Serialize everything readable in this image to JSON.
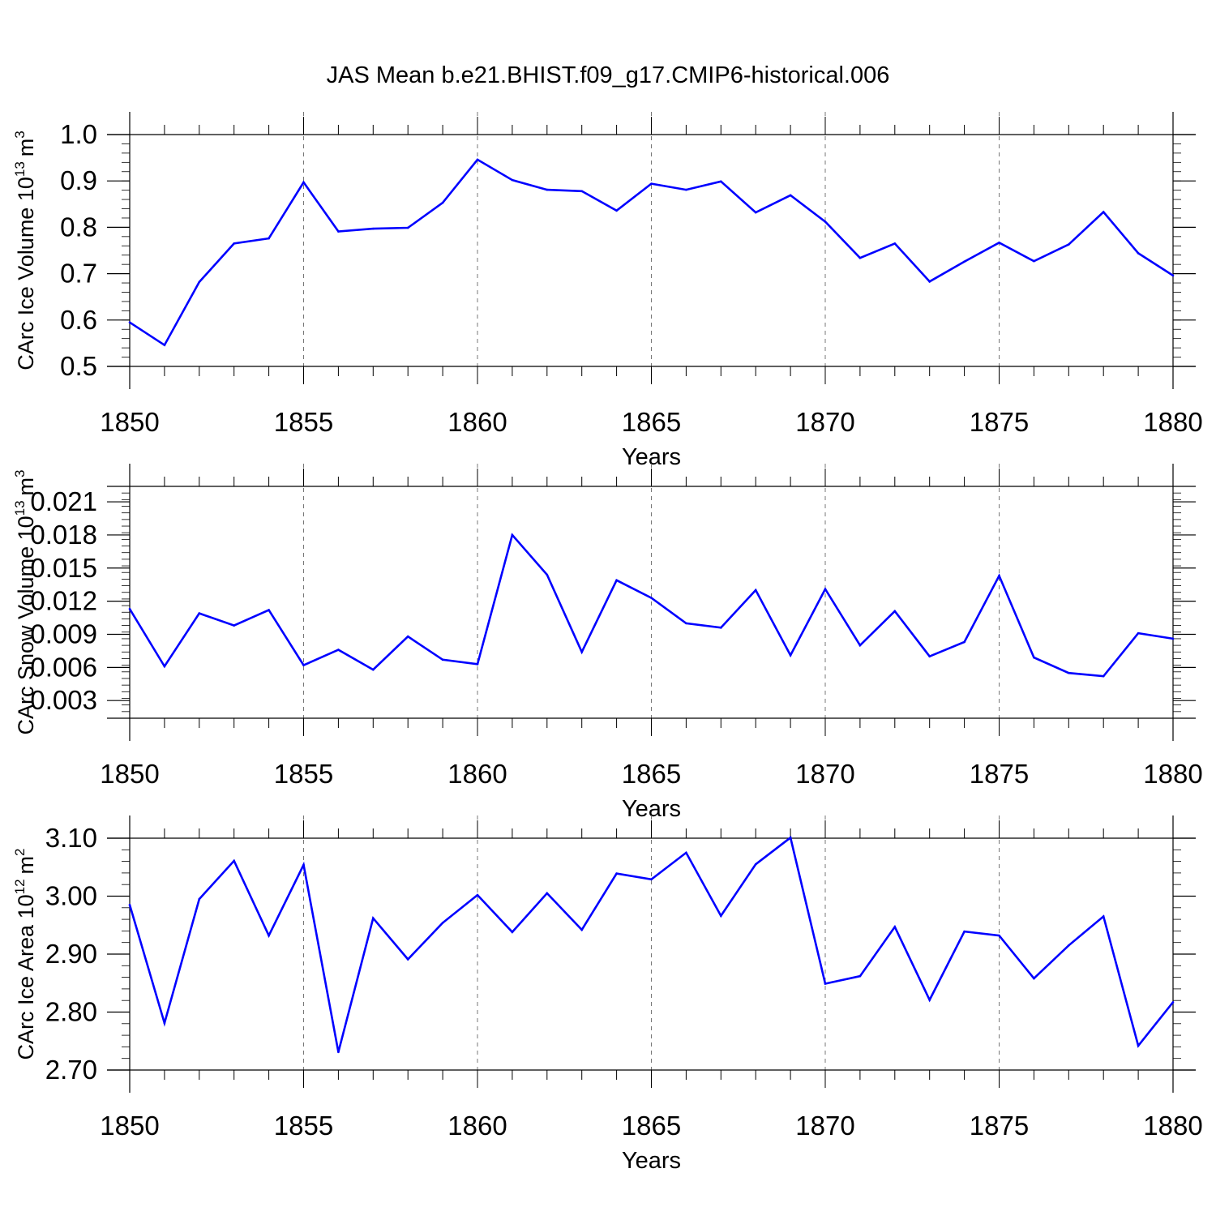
{
  "title": "JAS Mean b.e21.BHIST.f09_g17.CMIP6-historical.006",
  "colors": {
    "line": "#0000ff",
    "axis": "#000000",
    "grid": "#777777",
    "background": "#ffffff"
  },
  "chart_data": [
    {
      "type": "line",
      "ylabel_main": "CArc Ice Volume 10",
      "ylabel_exp": "13",
      "ylabel_unit": "m",
      "ylabel_unit_exp": "3",
      "xlabel": "Years",
      "xlim": [
        1850,
        1880
      ],
      "ylim": [
        0.5,
        1.0
      ],
      "xticks": [
        "1850",
        "1855",
        "1860",
        "1865",
        "1870",
        "1875",
        "1880"
      ],
      "yticks": [
        "0.5",
        "0.6",
        "0.7",
        "0.8",
        "0.9",
        "1.0"
      ],
      "x": [
        1850,
        1851,
        1852,
        1853,
        1854,
        1855,
        1856,
        1857,
        1858,
        1859,
        1860,
        1861,
        1862,
        1863,
        1864,
        1865,
        1866,
        1867,
        1868,
        1869,
        1870,
        1871,
        1872,
        1873,
        1874,
        1875,
        1876,
        1877,
        1878,
        1879,
        1880
      ],
      "values": [
        0.595,
        0.546,
        0.682,
        0.765,
        0.776,
        0.897,
        0.791,
        0.797,
        0.799,
        0.853,
        0.946,
        0.902,
        0.881,
        0.878,
        0.836,
        0.894,
        0.881,
        0.899,
        0.832,
        0.869,
        0.812,
        0.734,
        0.765,
        0.683,
        0.726,
        0.767,
        0.727,
        0.763,
        0.833,
        0.744,
        0.696
      ]
    },
    {
      "type": "line",
      "ylabel_main": "CArc Snow Volume 10",
      "ylabel_exp": "13",
      "ylabel_unit": "m",
      "ylabel_unit_exp": "3",
      "xlabel": "Years",
      "xlim": [
        1850,
        1880
      ],
      "ylim": [
        0.0014,
        0.0224
      ],
      "xticks": [
        "1850",
        "1855",
        "1860",
        "1865",
        "1870",
        "1875",
        "1880"
      ],
      "yticks": [
        "0.003",
        "0.006",
        "0.009",
        "0.012",
        "0.015",
        "0.018",
        "0.021"
      ],
      "x": [
        1850,
        1851,
        1852,
        1853,
        1854,
        1855,
        1856,
        1857,
        1858,
        1859,
        1860,
        1861,
        1862,
        1863,
        1864,
        1865,
        1866,
        1867,
        1868,
        1869,
        1870,
        1871,
        1872,
        1873,
        1874,
        1875,
        1876,
        1877,
        1878,
        1879,
        1880
      ],
      "values": [
        0.0113,
        0.0061,
        0.0109,
        0.0098,
        0.0112,
        0.0062,
        0.0076,
        0.0058,
        0.0088,
        0.0067,
        0.0063,
        0.018,
        0.0144,
        0.0074,
        0.0139,
        0.0123,
        0.01,
        0.0096,
        0.013,
        0.0071,
        0.0131,
        0.008,
        0.0111,
        0.007,
        0.0083,
        0.0143,
        0.0069,
        0.0055,
        0.0052,
        0.0091,
        0.0086
      ]
    },
    {
      "type": "line",
      "ylabel_main": "CArc Ice Area 10",
      "ylabel_exp": "12",
      "ylabel_unit": "m",
      "ylabel_unit_exp": "2",
      "xlabel": "Years",
      "xlim": [
        1850,
        1880
      ],
      "ylim": [
        2.7,
        3.1
      ],
      "xticks": [
        "1850",
        "1855",
        "1860",
        "1865",
        "1870",
        "1875",
        "1880"
      ],
      "yticks": [
        "2.70",
        "2.80",
        "2.90",
        "3.00",
        "3.10"
      ],
      "x": [
        1850,
        1851,
        1852,
        1853,
        1854,
        1855,
        1856,
        1857,
        1858,
        1859,
        1860,
        1861,
        1862,
        1863,
        1864,
        1865,
        1866,
        1867,
        1868,
        1869,
        1870,
        1871,
        1872,
        1873,
        1874,
        1875,
        1876,
        1877,
        1878,
        1879,
        1880
      ],
      "values": [
        2.985,
        2.781,
        2.995,
        3.061,
        2.932,
        3.054,
        2.731,
        2.962,
        2.891,
        2.954,
        3.002,
        2.938,
        3.005,
        2.942,
        3.039,
        3.029,
        3.075,
        2.966,
        3.055,
        3.101,
        2.849,
        2.862,
        2.947,
        2.821,
        2.939,
        2.932,
        2.858,
        2.915,
        2.965,
        2.742,
        2.817
      ]
    }
  ]
}
